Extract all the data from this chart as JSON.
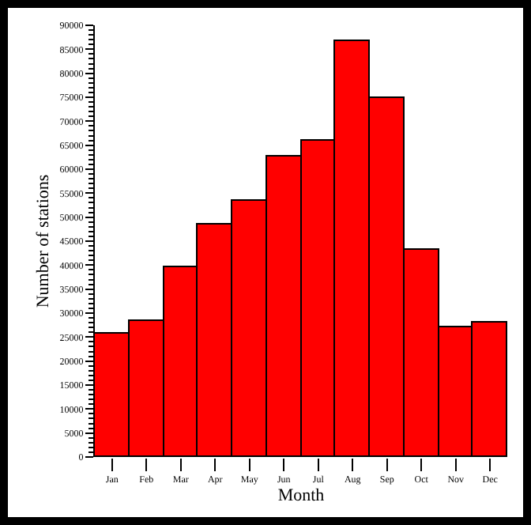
{
  "chart_data": {
    "type": "bar",
    "xlabel": "Month",
    "ylabel": "Number of stations",
    "categories": [
      "Jan",
      "Feb",
      "Mar",
      "Apr",
      "May",
      "Jun",
      "Jul",
      "Aug",
      "Sep",
      "Oct",
      "Nov",
      "Dec"
    ],
    "values": [
      25700,
      28200,
      39600,
      48400,
      53400,
      62800,
      65800,
      86600,
      74900,
      43300,
      26900,
      27900
    ],
    "color": "#ff0000",
    "ylim": [
      0,
      90000
    ],
    "yticks": [
      0,
      5000,
      10000,
      15000,
      20000,
      25000,
      30000,
      35000,
      40000,
      45000,
      50000,
      55000,
      60000,
      65000,
      70000,
      75000,
      80000,
      85000,
      90000
    ],
    "grid": false,
    "legend": false
  }
}
